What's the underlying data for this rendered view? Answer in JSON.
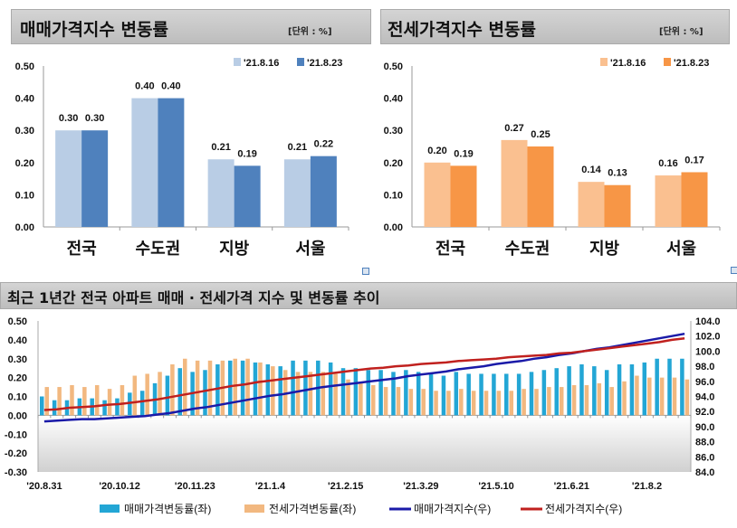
{
  "chart_data": [
    {
      "type": "bar",
      "title": "매매가격지수 변동률",
      "unit": "[단위 : %]",
      "categories": [
        "전국",
        "수도권",
        "지방",
        "서울"
      ],
      "series": [
        {
          "name": "'21.8.16",
          "color": "#b9cde5",
          "values": [
            0.3,
            0.4,
            0.21,
            0.21
          ]
        },
        {
          "name": "'21.8.23",
          "color": "#4f81bd",
          "values": [
            0.3,
            0.4,
            0.19,
            0.22
          ]
        }
      ],
      "ylim": [
        0,
        0.5
      ],
      "yticks": [
        "0.00",
        "0.10",
        "0.20",
        "0.30",
        "0.40",
        "0.50"
      ],
      "legend": "top-right"
    },
    {
      "type": "bar",
      "title": "전세가격지수 변동률",
      "unit": "[단위 : %]",
      "categories": [
        "전국",
        "수도권",
        "지방",
        "서울"
      ],
      "series": [
        {
          "name": "'21.8.16",
          "color": "#fac090",
          "values": [
            0.2,
            0.27,
            0.14,
            0.16
          ]
        },
        {
          "name": "'21.8.23",
          "color": "#f79646",
          "values": [
            0.19,
            0.25,
            0.13,
            0.17
          ]
        }
      ],
      "ylim": [
        0,
        0.5
      ],
      "yticks": [
        "0.00",
        "0.10",
        "0.20",
        "0.30",
        "0.40",
        "0.50"
      ],
      "legend": "top-right"
    },
    {
      "type": "bar+line",
      "title": "최근 1년간 전국 아파트 매매 · 전세가격 지수 및 변동률 추이",
      "xticklabels": [
        "'20.8.31",
        "'20.10.12",
        "'20.11.23",
        "'21.1.4",
        "'21.2.15",
        "'21.3.29",
        "'21.5.10",
        "'21.6.21",
        "'21.8.2"
      ],
      "xtick_every": 6,
      "ylim_left": [
        -0.3,
        0.5
      ],
      "yticks_left": [
        "0.50",
        "0.40",
        "0.30",
        "0.20",
        "0.10",
        "0.00",
        "-0.10",
        "-0.20",
        "-0.30"
      ],
      "ylim_right": [
        84,
        104
      ],
      "yticks_right": [
        "104.0",
        "102.0",
        "100.0",
        "98.0",
        "96.0",
        "94.0",
        "92.0",
        "90.0",
        "88.0",
        "86.0",
        "84.0"
      ],
      "series": [
        {
          "name": "매매가격변동률(좌)",
          "kind": "bar",
          "axis": "left",
          "color": "#23a6d5",
          "values": [
            0.1,
            0.08,
            0.08,
            0.09,
            0.09,
            0.08,
            0.09,
            0.12,
            0.13,
            0.17,
            0.21,
            0.25,
            0.23,
            0.24,
            0.27,
            0.29,
            0.29,
            0.28,
            0.27,
            0.26,
            0.29,
            0.29,
            0.29,
            0.28,
            0.25,
            0.25,
            0.24,
            0.24,
            0.23,
            0.24,
            0.23,
            0.22,
            0.21,
            0.23,
            0.22,
            0.22,
            0.22,
            0.22,
            0.22,
            0.23,
            0.24,
            0.25,
            0.26,
            0.27,
            0.26,
            0.24,
            0.27,
            0.27,
            0.28,
            0.3,
            0.3,
            0.3
          ]
        },
        {
          "name": "전세가격변동률(좌)",
          "kind": "bar",
          "axis": "left",
          "color": "#f2b880",
          "values": [
            0.15,
            0.15,
            0.16,
            0.15,
            0.16,
            0.14,
            0.16,
            0.21,
            0.22,
            0.23,
            0.27,
            0.3,
            0.29,
            0.29,
            0.29,
            0.3,
            0.3,
            0.28,
            0.26,
            0.24,
            0.23,
            0.23,
            0.23,
            0.22,
            0.19,
            0.17,
            0.16,
            0.15,
            0.15,
            0.14,
            0.14,
            0.13,
            0.13,
            0.14,
            0.13,
            0.13,
            0.13,
            0.13,
            0.14,
            0.14,
            0.15,
            0.15,
            0.16,
            0.16,
            0.17,
            0.15,
            0.18,
            0.21,
            0.2,
            0.2,
            0.2,
            0.19
          ]
        },
        {
          "name": "매매가격지수(우)",
          "kind": "line",
          "axis": "right",
          "color": "#1a1aa8",
          "values": [
            90.7,
            90.8,
            90.9,
            91.0,
            91.0,
            91.1,
            91.2,
            91.3,
            91.4,
            91.6,
            91.8,
            92.1,
            92.4,
            92.6,
            92.9,
            93.2,
            93.5,
            93.8,
            94.1,
            94.3,
            94.6,
            94.9,
            95.2,
            95.4,
            95.6,
            95.8,
            96.0,
            96.2,
            96.4,
            96.7,
            96.9,
            97.1,
            97.3,
            97.6,
            97.8,
            98.0,
            98.3,
            98.5,
            98.7,
            99.0,
            99.2,
            99.5,
            99.7,
            100.0,
            100.3,
            100.5,
            100.8,
            101.1,
            101.4,
            101.7,
            102.0,
            102.3
          ]
        },
        {
          "name": "전세가격지수(우)",
          "kind": "line",
          "axis": "right",
          "color": "#c0201e",
          "values": [
            92.2,
            92.3,
            92.5,
            92.6,
            92.7,
            92.9,
            93.0,
            93.2,
            93.4,
            93.6,
            93.9,
            94.2,
            94.5,
            94.8,
            95.1,
            95.4,
            95.6,
            95.9,
            96.1,
            96.3,
            96.5,
            96.7,
            96.9,
            97.1,
            97.3,
            97.5,
            97.7,
            97.8,
            98.0,
            98.1,
            98.3,
            98.4,
            98.5,
            98.7,
            98.8,
            98.9,
            99.0,
            99.2,
            99.3,
            99.4,
            99.5,
            99.7,
            99.8,
            100.0,
            100.2,
            100.4,
            100.6,
            100.8,
            101.0,
            101.2,
            101.5,
            101.7
          ]
        }
      ],
      "legend": "bottom"
    }
  ]
}
